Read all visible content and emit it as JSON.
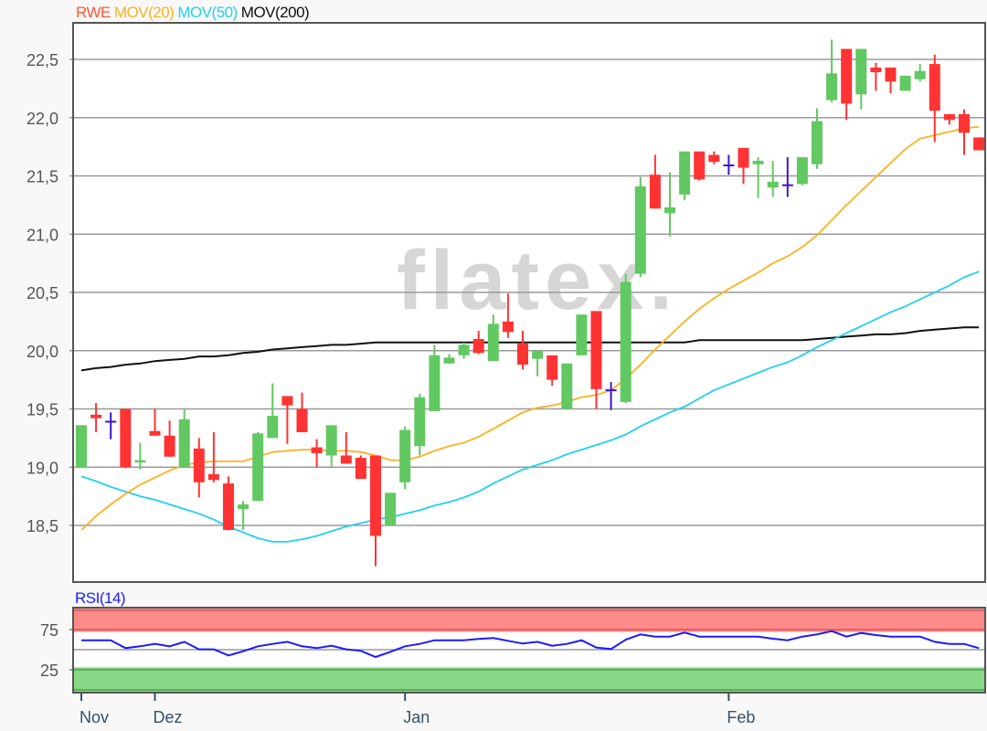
{
  "legend": [
    {
      "label": "RWE",
      "color": "#ff5a36"
    },
    {
      "label": "MOV(20)",
      "color": "#ffb020"
    },
    {
      "label": "MOV(50)",
      "color": "#22d0f0"
    },
    {
      "label": "MOV(200)",
      "color": "#111111"
    }
  ],
  "watermark": "flatex.",
  "chart_data": [
    {
      "type": "candlestick",
      "title": "",
      "ylim": [
        18.0,
        22.8
      ],
      "y_ticks": [
        22.5,
        22.0,
        21.5,
        21.0,
        20.5,
        20.0,
        19.5,
        19.0,
        18.5
      ],
      "y_tick_labels": [
        "22,5",
        "22,0",
        "21,5",
        "21,0",
        "20,5",
        "20,0",
        "19,5",
        "19,0",
        "18,5"
      ],
      "grid": true,
      "x_ticks": [
        {
          "index": 0,
          "label": "Nov"
        },
        {
          "index": 5,
          "label": "Dez"
        },
        {
          "index": 22,
          "label": "Jan"
        },
        {
          "index": 44,
          "label": "Feb"
        }
      ],
      "colors": {
        "up": "#62c862",
        "down": "#ff3333",
        "doji": "#3a16d0"
      },
      "ohlc": [
        [
          19.0,
          19.36,
          19.0,
          19.36
        ],
        [
          19.45,
          19.55,
          19.3,
          19.42
        ],
        [
          19.39,
          19.47,
          19.24,
          19.39
        ],
        [
          19.5,
          19.5,
          18.99,
          19.0
        ],
        [
          19.04,
          19.21,
          18.98,
          19.06
        ],
        [
          19.31,
          19.5,
          19.27,
          19.27
        ],
        [
          19.27,
          19.4,
          19.09,
          19.09
        ],
        [
          19.0,
          19.5,
          19.0,
          19.41
        ],
        [
          19.16,
          19.25,
          18.74,
          18.87
        ],
        [
          18.94,
          19.3,
          18.87,
          18.89
        ],
        [
          18.86,
          18.92,
          18.46,
          18.46
        ],
        [
          18.64,
          18.71,
          18.46,
          18.68
        ],
        [
          18.71,
          19.3,
          18.71,
          19.29
        ],
        [
          19.25,
          19.72,
          19.25,
          19.44
        ],
        [
          19.61,
          19.61,
          19.2,
          19.53
        ],
        [
          19.5,
          19.64,
          19.3,
          19.3
        ],
        [
          19.17,
          19.24,
          19.0,
          19.12
        ],
        [
          19.1,
          19.36,
          19.0,
          19.36
        ],
        [
          19.1,
          19.3,
          19.03,
          19.03
        ],
        [
          19.08,
          19.1,
          18.9,
          18.9
        ],
        [
          19.1,
          19.1,
          18.15,
          18.41
        ],
        [
          18.5,
          18.78,
          18.5,
          18.78
        ],
        [
          18.87,
          19.35,
          18.81,
          19.32
        ],
        [
          19.18,
          19.63,
          19.1,
          19.6
        ],
        [
          19.48,
          20.05,
          19.48,
          19.96
        ],
        [
          19.89,
          19.97,
          19.89,
          19.94
        ],
        [
          19.96,
          20.07,
          19.93,
          20.05
        ],
        [
          20.1,
          20.17,
          19.97,
          19.98
        ],
        [
          19.91,
          20.31,
          19.91,
          20.23
        ],
        [
          20.25,
          20.49,
          20.11,
          20.16
        ],
        [
          20.06,
          20.17,
          19.84,
          19.88
        ],
        [
          19.93,
          20.0,
          19.78,
          20.0
        ],
        [
          19.96,
          19.96,
          19.7,
          19.75
        ],
        [
          19.5,
          19.89,
          19.5,
          19.89
        ],
        [
          19.96,
          20.31,
          19.96,
          20.31
        ],
        [
          20.34,
          20.34,
          19.5,
          19.67
        ],
        [
          19.66,
          19.73,
          19.49,
          19.66
        ],
        [
          19.56,
          20.66,
          19.55,
          20.59
        ],
        [
          20.66,
          21.49,
          20.63,
          21.41
        ],
        [
          21.51,
          21.68,
          21.22,
          21.22
        ],
        [
          21.18,
          21.53,
          20.98,
          21.23
        ],
        [
          21.34,
          21.71,
          21.29,
          21.71
        ],
        [
          21.71,
          21.71,
          21.46,
          21.47
        ],
        [
          21.68,
          21.71,
          21.6,
          21.62
        ],
        [
          21.59,
          21.68,
          21.51,
          21.59
        ],
        [
          21.74,
          21.74,
          21.43,
          21.57
        ],
        [
          21.6,
          21.66,
          21.31,
          21.63
        ],
        [
          21.4,
          21.63,
          21.32,
          21.45
        ],
        [
          21.42,
          21.66,
          21.32,
          21.42
        ],
        [
          21.43,
          21.66,
          21.42,
          21.66
        ],
        [
          21.6,
          22.08,
          21.56,
          21.97
        ],
        [
          22.15,
          22.67,
          22.13,
          22.38
        ],
        [
          22.59,
          22.59,
          21.98,
          22.12
        ],
        [
          22.2,
          22.59,
          22.07,
          22.59
        ],
        [
          22.43,
          22.47,
          22.23,
          22.39
        ],
        [
          22.43,
          22.43,
          22.21,
          22.31
        ],
        [
          22.23,
          22.36,
          22.23,
          22.36
        ],
        [
          22.33,
          22.46,
          22.31,
          22.4
        ],
        [
          22.46,
          22.54,
          21.79,
          22.06
        ],
        [
          22.03,
          22.03,
          21.94,
          21.98
        ],
        [
          22.03,
          22.07,
          21.68,
          21.87
        ],
        [
          21.83,
          21.83,
          21.72,
          21.72
        ]
      ],
      "series": [
        {
          "name": "MOV(20)",
          "color": "#ffb020",
          "values": [
            18.46,
            18.58,
            18.68,
            18.77,
            18.85,
            18.91,
            18.97,
            19.02,
            19.04,
            19.05,
            19.05,
            19.05,
            19.09,
            19.13,
            19.14,
            19.15,
            19.15,
            19.14,
            19.14,
            19.13,
            19.1,
            19.06,
            19.06,
            19.09,
            19.14,
            19.18,
            19.21,
            19.26,
            19.33,
            19.4,
            19.47,
            19.51,
            19.53,
            19.56,
            19.6,
            19.62,
            19.66,
            19.76,
            19.88,
            20.01,
            20.13,
            20.25,
            20.36,
            20.45,
            20.53,
            20.6,
            20.67,
            20.75,
            20.81,
            20.89,
            20.99,
            21.12,
            21.25,
            21.37,
            21.49,
            21.61,
            21.73,
            21.82,
            21.85,
            21.88,
            21.91,
            21.92
          ]
        },
        {
          "name": "MOV(50)",
          "color": "#22d0f0",
          "values": [
            18.92,
            18.88,
            18.83,
            18.79,
            18.75,
            18.72,
            18.68,
            18.64,
            18.6,
            18.55,
            18.49,
            18.44,
            18.39,
            18.36,
            18.36,
            18.38,
            18.41,
            18.45,
            18.49,
            18.52,
            18.55,
            18.57,
            18.6,
            18.63,
            18.67,
            18.7,
            18.74,
            18.79,
            18.86,
            18.92,
            18.98,
            19.02,
            19.06,
            19.11,
            19.15,
            19.19,
            19.23,
            19.28,
            19.35,
            19.41,
            19.47,
            19.52,
            19.59,
            19.66,
            19.71,
            19.76,
            19.81,
            19.86,
            19.9,
            19.96,
            20.03,
            20.09,
            20.15,
            20.21,
            20.27,
            20.33,
            20.38,
            20.44,
            20.5,
            20.56,
            20.63,
            20.68
          ]
        },
        {
          "name": "MOV(200)",
          "color": "#111111",
          "values": [
            19.83,
            19.85,
            19.86,
            19.88,
            19.89,
            19.91,
            19.92,
            19.93,
            19.95,
            19.95,
            19.96,
            19.98,
            19.99,
            20.01,
            20.02,
            20.03,
            20.04,
            20.05,
            20.05,
            20.06,
            20.07,
            20.07,
            20.07,
            20.07,
            20.07,
            20.07,
            20.07,
            20.07,
            20.07,
            20.07,
            20.07,
            20.07,
            20.07,
            20.07,
            20.07,
            20.07,
            20.07,
            20.07,
            20.07,
            20.07,
            20.07,
            20.07,
            20.09,
            20.09,
            20.09,
            20.09,
            20.09,
            20.09,
            20.09,
            20.09,
            20.1,
            20.11,
            20.12,
            20.13,
            20.14,
            20.14,
            20.15,
            20.17,
            20.18,
            20.19,
            20.2,
            20.2
          ]
        }
      ]
    },
    {
      "type": "line",
      "title": "RSI(14)",
      "ylim": [
        0,
        100
      ],
      "y_ticks": [
        75,
        25
      ],
      "y_tick_labels": [
        "75",
        "25"
      ],
      "midline": 50,
      "overbought_band": [
        72,
        100
      ],
      "oversold_band": [
        0,
        28
      ],
      "band_colors": {
        "overbought": "#ff8a8a",
        "oversold": "#88d888"
      },
      "series": [
        {
          "name": "RSI(14)",
          "color": "#1a1aff",
          "values": [
            61.7,
            61.7,
            61.7,
            51.9,
            54.2,
            57.2,
            54.2,
            59.8,
            50.4,
            50.4,
            42.8,
            48.1,
            54.2,
            57.2,
            59.8,
            54.2,
            51.9,
            54.9,
            50.4,
            48.5,
            40.9,
            47.3,
            54.2,
            57.2,
            61.7,
            61.7,
            61.7,
            63.3,
            64.4,
            61.0,
            57.6,
            59.8,
            54.9,
            57.2,
            61.7,
            52.6,
            50.8,
            62.5,
            69.0,
            66.3,
            66.3,
            71.2,
            66.3,
            66.3,
            66.3,
            66.3,
            66.3,
            63.6,
            61.7,
            66.3,
            69.0,
            73.1,
            66.3,
            70.8,
            68.2,
            66.3,
            66.3,
            66.3,
            59.8,
            57.2,
            57.2,
            51.9
          ]
        }
      ]
    }
  ]
}
